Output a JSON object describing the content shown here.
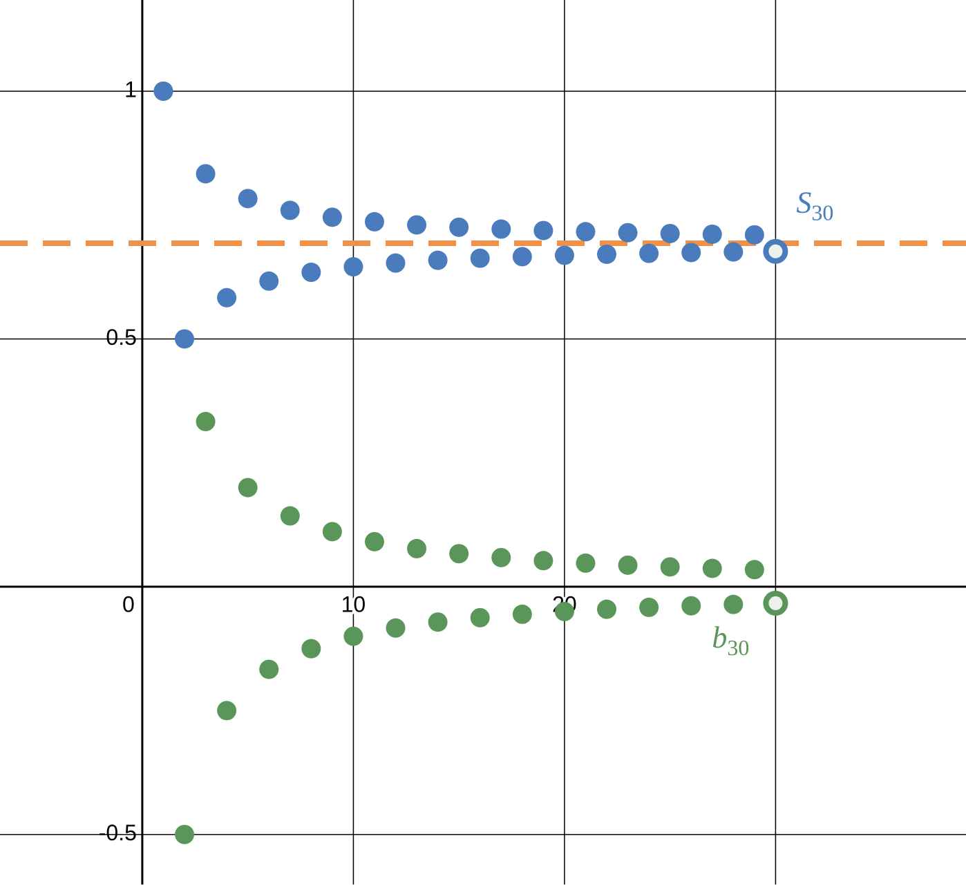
{
  "chart_data": {
    "type": "scatter",
    "xlim": [
      -6.74,
      39.02
    ],
    "ylim": [
      -0.601,
      1.184
    ],
    "xticks": [
      0,
      10,
      20
    ],
    "yticks": [
      -0.5,
      0.5,
      1
    ],
    "xgrid": [
      10,
      20,
      30
    ],
    "grid": true,
    "series": [
      {
        "name": "b",
        "subscript": "30",
        "color": "#5a9659",
        "x": [
          1,
          2,
          3,
          4,
          5,
          6,
          7,
          8,
          9,
          10,
          11,
          12,
          13,
          14,
          15,
          16,
          17,
          18,
          19,
          20,
          21,
          22,
          23,
          24,
          25,
          26,
          27,
          28,
          29,
          30
        ],
        "values": [
          1,
          -0.5,
          0.3333,
          -0.25,
          0.2,
          -0.1667,
          0.1429,
          -0.125,
          0.1111,
          -0.1,
          0.0909,
          -0.0833,
          0.0769,
          -0.0714,
          0.0667,
          -0.0625,
          0.0588,
          -0.0556,
          0.0526,
          -0.05,
          0.0476,
          -0.0455,
          0.0435,
          -0.0417,
          0.04,
          -0.0385,
          0.037,
          -0.0357,
          0.0345,
          -0.0333
        ]
      },
      {
        "name": "S",
        "subscript": "30",
        "color": "#4a7bbd",
        "x": [
          1,
          2,
          3,
          4,
          5,
          6,
          7,
          8,
          9,
          10,
          11,
          12,
          13,
          14,
          15,
          16,
          17,
          18,
          19,
          20,
          21,
          22,
          23,
          24,
          25,
          26,
          27,
          28,
          29,
          30
        ],
        "values": [
          1,
          0.5,
          0.8333,
          0.5833,
          0.7833,
          0.6167,
          0.7595,
          0.6345,
          0.7456,
          0.6456,
          0.7365,
          0.6532,
          0.7301,
          0.6587,
          0.7254,
          0.6629,
          0.7217,
          0.6661,
          0.7188,
          0.6688,
          0.7164,
          0.6709,
          0.7144,
          0.6727,
          0.7127,
          0.6743,
          0.7113,
          0.6756,
          0.7101,
          0.6768
        ]
      }
    ],
    "reference_line": {
      "value": 0.6931,
      "color": "#f0914a",
      "dashed": true
    }
  }
}
